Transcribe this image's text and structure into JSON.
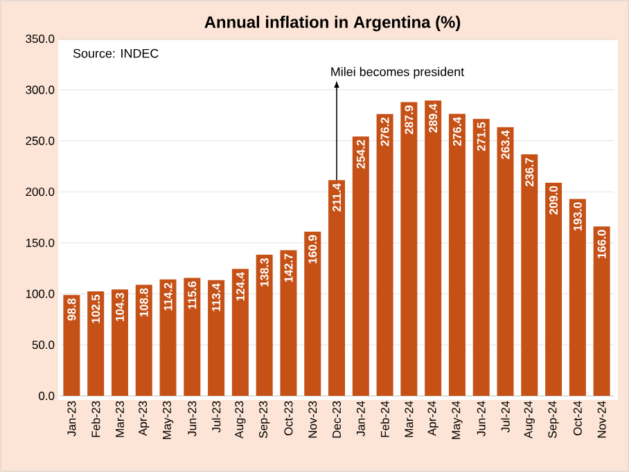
{
  "chart_data": {
    "type": "bar",
    "title": "Annual inflation in Argentina (%)",
    "categories": [
      "Jan-23",
      "Feb-23",
      "Mar-23",
      "Apr-23",
      "May-23",
      "Jun-23",
      "Jul-23",
      "Aug-23",
      "Sep-23",
      "Oct-23",
      "Nov-23",
      "Dec-23",
      "Jan-24",
      "Feb-24",
      "Mar-24",
      "Apr-24",
      "May-24",
      "Jun-24",
      "Jul-24",
      "Aug-24",
      "Sep-24",
      "Oct-24",
      "Nov-24"
    ],
    "values": [
      98.8,
      102.5,
      104.3,
      108.8,
      114.2,
      115.6,
      113.4,
      124.4,
      138.3,
      142.7,
      160.9,
      211.4,
      254.2,
      276.2,
      287.9,
      289.4,
      276.4,
      271.5,
      263.4,
      236.7,
      209.0,
      193.0,
      166.0
    ],
    "value_labels": [
      "98.8",
      "102.5",
      "104.3",
      "108.8",
      "114.2",
      "115.6",
      "113.4",
      "124.4",
      "138.3",
      "142.7",
      "160.9",
      "211.4",
      "254.2",
      "276.2",
      "287.9",
      "289.4",
      "276.4",
      "271.5",
      "263.4",
      "236.7",
      "209.0",
      "193.0",
      "166.0"
    ],
    "color": "#c55117",
    "ylim": [
      0,
      350
    ],
    "yticks": [
      {
        "value": 0,
        "label": "0.0"
      },
      {
        "value": 50,
        "label": "50.0"
      },
      {
        "value": 100,
        "label": "100.0"
      },
      {
        "value": 150,
        "label": "150.0"
      },
      {
        "value": 200,
        "label": "200.0"
      },
      {
        "value": 250,
        "label": "250.0"
      },
      {
        "value": 300,
        "label": "300.0"
      },
      {
        "value": 350,
        "label": "350.0"
      }
    ],
    "grid": "y",
    "annotations": [
      "Source: INDEC",
      {
        "text": "Milei becomes president",
        "x": "Dec-23",
        "y": 211.4
      }
    ]
  }
}
